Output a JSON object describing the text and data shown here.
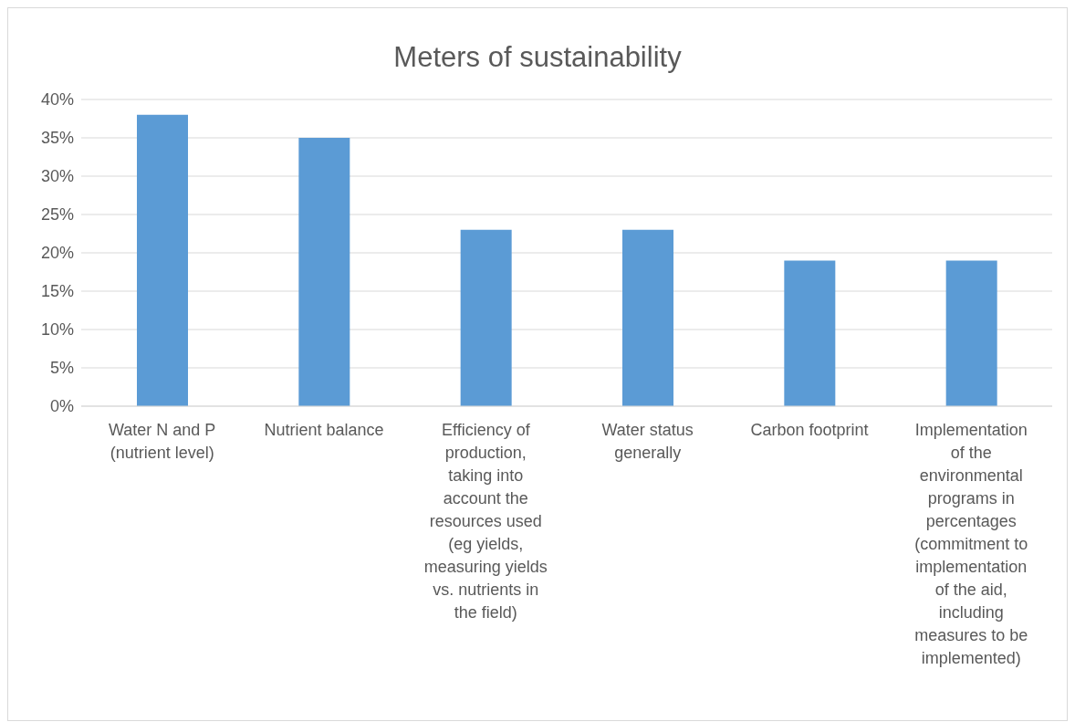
{
  "chart_data": {
    "type": "bar",
    "title": "Meters of sustainability",
    "categories": [
      "Water N and P (nutrient level)",
      "Nutrient balance",
      "Efficiency of production, taking into account the resources used (eg yields, measuring yields vs. nutrients in the field)",
      "Water status generally",
      "Carbon footprint",
      "Implementation of the environmental programs in percentages (commitment to implementation of the aid, including measures to be implemented)"
    ],
    "values": [
      38,
      35,
      23,
      23,
      19,
      19
    ],
    "color": "#5b9bd5",
    "ylim": [
      0,
      40
    ],
    "yticks": [
      {
        "value": 0,
        "label": "0%"
      },
      {
        "value": 5,
        "label": "5%"
      },
      {
        "value": 10,
        "label": "10%"
      },
      {
        "value": 15,
        "label": "15%"
      },
      {
        "value": 20,
        "label": "20%"
      },
      {
        "value": 25,
        "label": "25%"
      },
      {
        "value": 30,
        "label": "30%"
      },
      {
        "value": 35,
        "label": "35%"
      },
      {
        "value": 40,
        "label": "40%"
      }
    ],
    "grid": "y"
  }
}
